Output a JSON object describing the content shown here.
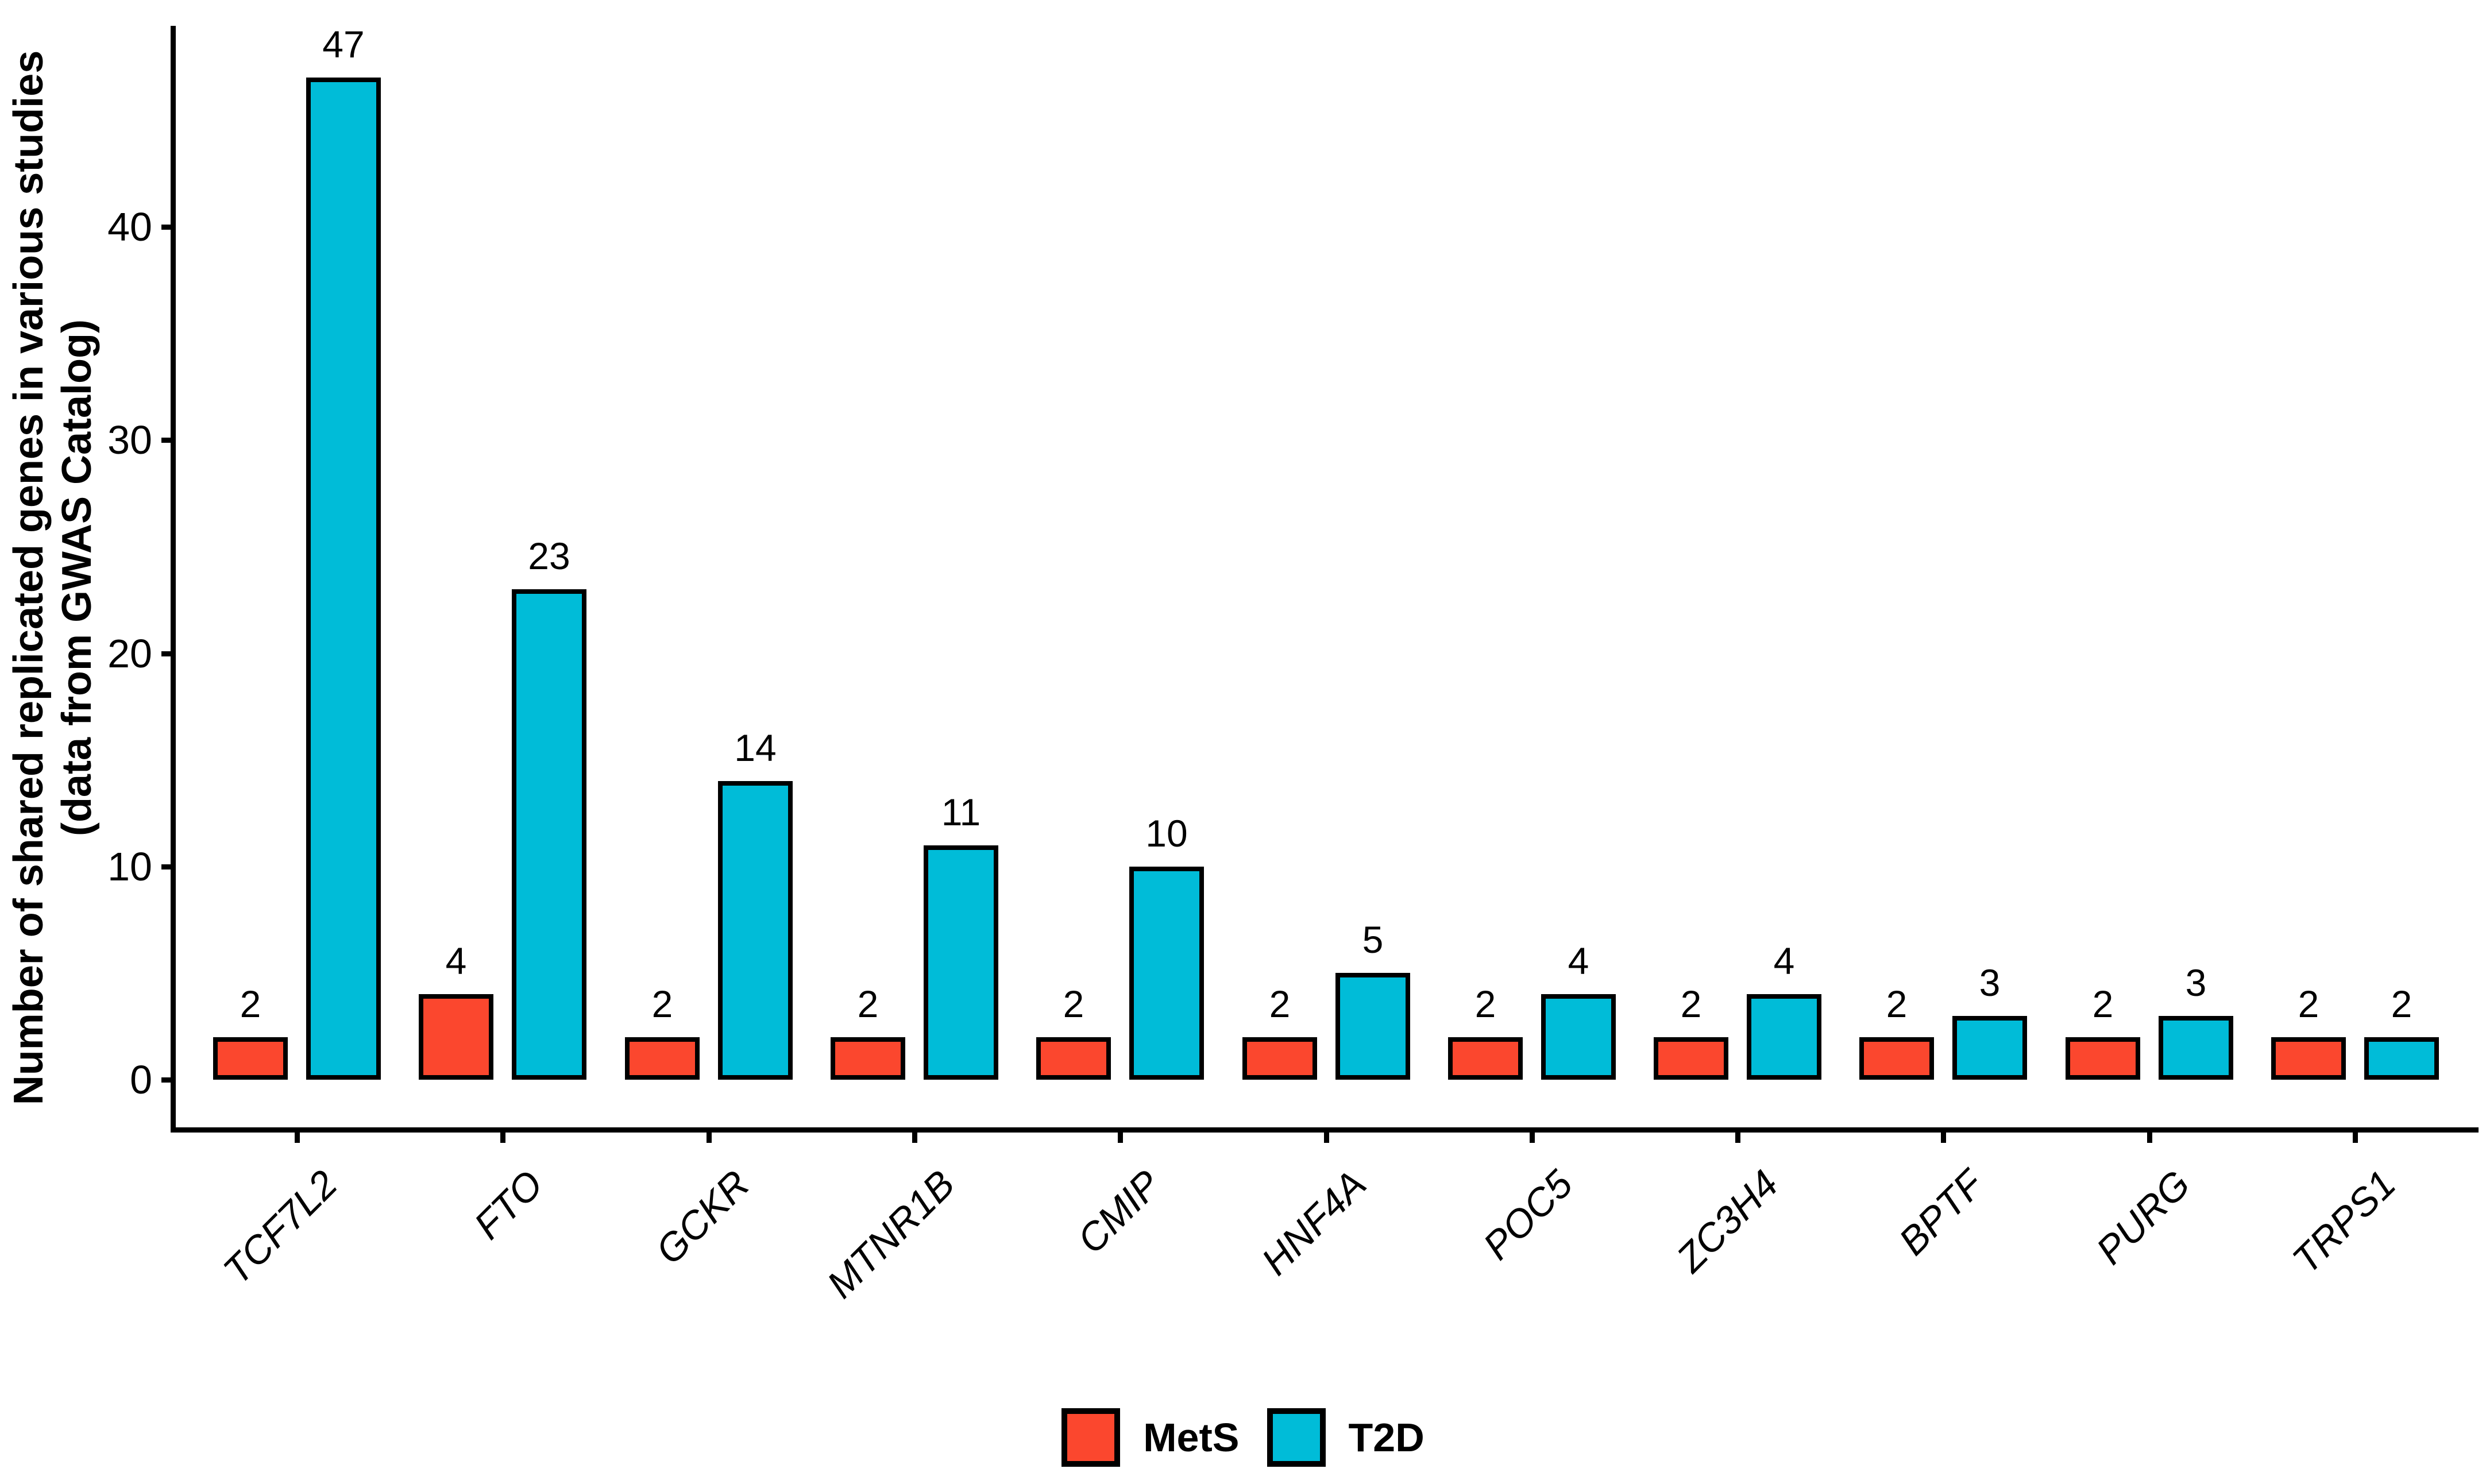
{
  "figure": {
    "background_color": "#FFFFFF",
    "axis_color": "#000000",
    "text_color": "#000000"
  },
  "chart_data": {
    "type": "bar",
    "title": "",
    "xlabel": "",
    "ylabel": "Number of shared replicated genes in various studies\n(data from GWAS Catalog)",
    "categories": [
      "TCF7L2",
      "FTO",
      "GCKR",
      "MTNR1B",
      "CMIP",
      "HNF4A",
      "POC5",
      "ZC3H4",
      "BPTF",
      "PURG",
      "TRPS1"
    ],
    "series": [
      {
        "name": "MetS",
        "color": "#FB472E",
        "values": [
          2,
          4,
          2,
          2,
          2,
          2,
          2,
          2,
          2,
          2,
          2
        ]
      },
      {
        "name": "T2D",
        "color": "#00BCD8",
        "values": [
          47,
          23,
          14,
          11,
          10,
          5,
          4,
          4,
          3,
          3,
          2
        ]
      }
    ],
    "value_labels_shown": true,
    "yticks": [
      0,
      10,
      20,
      30,
      40
    ],
    "ylim": [
      0,
      49
    ],
    "grid": false,
    "legend_position": "bottom",
    "bar_outline_color": "#000000",
    "category_label_style": "italic, rotated 45 degrees"
  }
}
